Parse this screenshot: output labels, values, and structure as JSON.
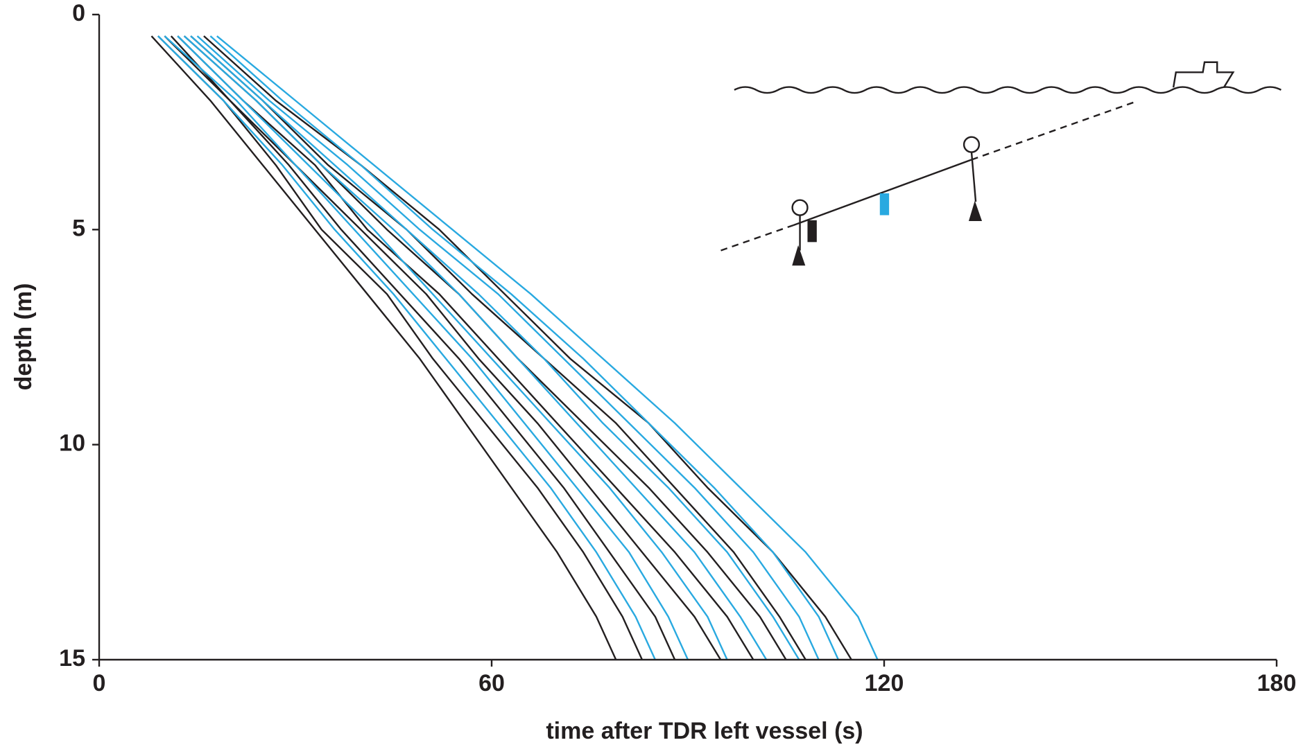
{
  "chart_data": {
    "type": "line",
    "xlabel": "time after TDR left vessel (s)",
    "ylabel": "depth (m)",
    "xlim": [
      0,
      180
    ],
    "xticks": [
      0,
      60,
      120,
      180
    ],
    "ylim": [
      0,
      15
    ],
    "yticks": [
      0,
      5,
      10,
      15
    ],
    "y_inverted": true,
    "series": [
      {
        "color": "#231f20",
        "x": [
          8,
          17,
          25,
          33,
          41,
          49,
          56,
          63,
          70,
          76,
          79
        ],
        "values": [
          0.5,
          2,
          3.5,
          5,
          6.5,
          8,
          9.5,
          11,
          12.5,
          14,
          15
        ]
      },
      {
        "color": "#231f20",
        "x": [
          9,
          19,
          27,
          34,
          44,
          51,
          59,
          67,
          74,
          80,
          83
        ],
        "values": [
          0.5,
          2,
          3.5,
          5,
          6.5,
          8,
          9.5,
          11,
          12.5,
          14,
          15
        ]
      },
      {
        "color": "#231f20",
        "x": [
          10,
          20,
          29,
          37,
          46,
          55,
          63,
          71,
          78,
          85,
          88
        ],
        "values": [
          0.5,
          2,
          3.5,
          5,
          6.5,
          8,
          9.5,
          11,
          12.5,
          14,
          15
        ]
      },
      {
        "color": "#231f20",
        "x": [
          11,
          20,
          30,
          40,
          50,
          58,
          67,
          75,
          83,
          91,
          95
        ],
        "values": [
          0.5,
          2,
          3.5,
          5,
          6.5,
          8,
          9.5,
          11,
          12.5,
          14,
          15
        ]
      },
      {
        "color": "#231f20",
        "x": [
          12,
          22,
          33,
          41,
          52,
          61,
          70,
          79,
          88,
          96,
          100
        ],
        "values": [
          0.5,
          2,
          3.5,
          5,
          6.5,
          8,
          9.5,
          11,
          12.5,
          14,
          15
        ]
      },
      {
        "color": "#231f20",
        "x": [
          13,
          24,
          34,
          44,
          55,
          64,
          74,
          84,
          93,
          101,
          105
        ],
        "values": [
          0.5,
          2,
          3.5,
          5,
          6.5,
          8,
          9.5,
          11,
          12.5,
          14,
          15
        ]
      },
      {
        "color": "#231f20",
        "x": [
          14,
          25,
          35,
          47,
          57,
          68,
          79,
          88,
          97,
          104,
          108
        ],
        "values": [
          0.5,
          2,
          3.5,
          5,
          6.5,
          8,
          9.5,
          11,
          12.5,
          14,
          15
        ]
      },
      {
        "color": "#231f20",
        "x": [
          16,
          27,
          40,
          52,
          62,
          72,
          84,
          93,
          103,
          111,
          115
        ],
        "values": [
          0.5,
          2,
          3.5,
          5,
          6.5,
          8,
          9.5,
          11,
          12.5,
          14,
          15
        ]
      },
      {
        "color": "#29a9e0",
        "x": [
          9,
          19,
          28,
          36,
          45,
          53,
          61,
          69,
          76,
          82,
          85
        ],
        "values": [
          0.5,
          2,
          3.5,
          5,
          6.5,
          8,
          9.5,
          11,
          12.5,
          14,
          15
        ]
      },
      {
        "color": "#29a9e0",
        "x": [
          10,
          21,
          30,
          39,
          48,
          57,
          65,
          73,
          81,
          87,
          90
        ],
        "values": [
          0.5,
          2,
          3.5,
          5,
          6.5,
          8,
          9.5,
          11,
          12.5,
          14,
          15
        ]
      },
      {
        "color": "#29a9e0",
        "x": [
          12,
          22,
          32,
          42,
          51,
          60,
          69,
          78,
          86,
          93,
          96
        ],
        "values": [
          0.5,
          2,
          3.5,
          5,
          6.5,
          8,
          9.5,
          11,
          12.5,
          14,
          15
        ]
      },
      {
        "color": "#29a9e0",
        "x": [
          13,
          24,
          34,
          45,
          55,
          64,
          73,
          82,
          91,
          98,
          102
        ],
        "values": [
          0.5,
          2,
          3.5,
          5,
          6.5,
          8,
          9.5,
          11,
          12.5,
          14,
          15
        ]
      },
      {
        "color": "#29a9e0",
        "x": [
          14,
          25,
          36,
          47,
          58,
          68,
          77,
          87,
          96,
          103,
          107
        ],
        "values": [
          0.5,
          2,
          3.5,
          5,
          6.5,
          8,
          9.5,
          11,
          12.5,
          14,
          15
        ]
      },
      {
        "color": "#29a9e0",
        "x": [
          15,
          26,
          38,
          49,
          61,
          71,
          81,
          91,
          100,
          107,
          110
        ],
        "values": [
          0.5,
          2,
          3.5,
          5,
          6.5,
          8,
          9.5,
          11,
          12.5,
          14,
          15
        ]
      },
      {
        "color": "#29a9e0",
        "x": [
          17,
          28,
          40,
          51,
          63,
          74,
          84,
          94,
          103,
          110,
          113
        ],
        "values": [
          0.5,
          2,
          3.5,
          5,
          6.5,
          8,
          9.5,
          11,
          12.5,
          14,
          15
        ]
      },
      {
        "color": "#29a9e0",
        "x": [
          18,
          30,
          42,
          54,
          66,
          77,
          88,
          98,
          108,
          116,
          119
        ],
        "values": [
          0.5,
          2,
          3.5,
          5,
          6.5,
          8,
          9.5,
          11,
          12.5,
          14,
          15
        ]
      }
    ]
  }
}
